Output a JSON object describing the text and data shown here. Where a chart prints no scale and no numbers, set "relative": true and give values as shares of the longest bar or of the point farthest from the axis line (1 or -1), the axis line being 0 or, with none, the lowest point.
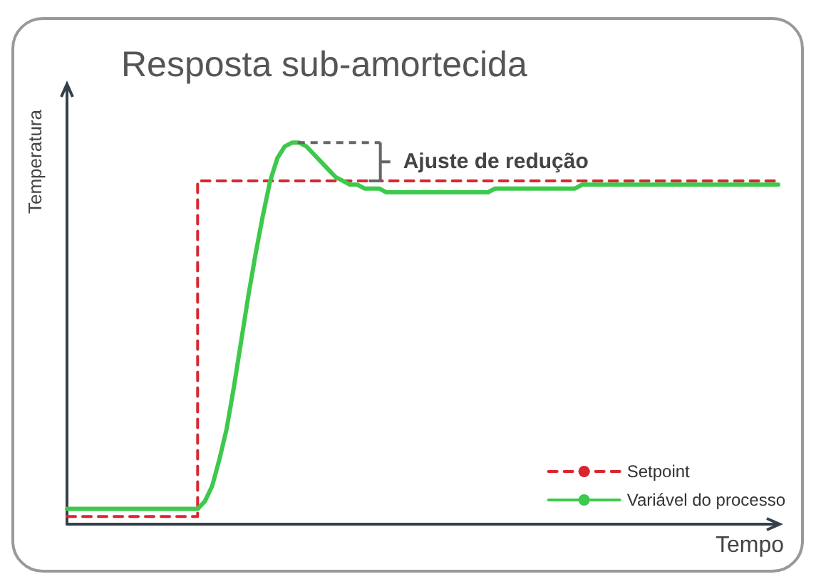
{
  "chart_data": {
    "type": "line",
    "title": "Resposta sub-amortecida",
    "xlabel": "Tempo",
    "ylabel": "Temperatura",
    "relative": true,
    "grid": false,
    "legend": "bottom right",
    "marker": "none",
    "annotations": [
      "Ajuste de redução"
    ],
    "categories": [
      null,
      null,
      null,
      null,
      null,
      null,
      null,
      null,
      null,
      null,
      null,
      null,
      null,
      null,
      null,
      null,
      null,
      null,
      null,
      null,
      null,
      null,
      null,
      null,
      null,
      null,
      null,
      null,
      null,
      null,
      null,
      null,
      null,
      null,
      null,
      null,
      null,
      null,
      null,
      null,
      null,
      null,
      null,
      null,
      null,
      null,
      null,
      null,
      null,
      null,
      null,
      null,
      null,
      null,
      null,
      null,
      null,
      null,
      null,
      null,
      null,
      null,
      null,
      null,
      null,
      null,
      null,
      null,
      null,
      null,
      null,
      null,
      null,
      null,
      null,
      null,
      null,
      null,
      null,
      null,
      null,
      null,
      null,
      null,
      null,
      null,
      null,
      null,
      null,
      null,
      null,
      null,
      null,
      null,
      null,
      null,
      null,
      null,
      null
    ],
    "series": [
      {
        "name": "Setpoint",
        "type": "step",
        "color": "#d9262e",
        "line_style": "dashed",
        "values": [
          0.02,
          0.02,
          0.02,
          0.02,
          0.02,
          0.02,
          0.02,
          0.02,
          0.02,
          0.02,
          0.02,
          0.02,
          0.02,
          0.02,
          0.02,
          0.02,
          0.02,
          0.02,
          0.9,
          0.9,
          0.9,
          0.9,
          0.9,
          0.9,
          0.9,
          0.9,
          0.9,
          0.9,
          0.9,
          0.9,
          0.9,
          0.9,
          0.9,
          0.9,
          0.9,
          0.9,
          0.9,
          0.9,
          0.9,
          0.9,
          0.9,
          0.9,
          0.9,
          0.9,
          0.9,
          0.9,
          0.9,
          0.9,
          0.9,
          0.9,
          0.9,
          0.9,
          0.9,
          0.9,
          0.9,
          0.9,
          0.9,
          0.9,
          0.9,
          0.9,
          0.9,
          0.9,
          0.9,
          0.9,
          0.9,
          0.9,
          0.9,
          0.9,
          0.9,
          0.9,
          0.9,
          0.9,
          0.9,
          0.9,
          0.9,
          0.9,
          0.9,
          0.9,
          0.9,
          0.9,
          0.9,
          0.9,
          0.9,
          0.9,
          0.9,
          0.9,
          0.9,
          0.9,
          0.9,
          0.9,
          0.9,
          0.9,
          0.9,
          0.9,
          0.9,
          0.9,
          0.9,
          0.9,
          0.9
        ]
      },
      {
        "name": "Variável do processo",
        "type": "line",
        "color": "#3dc94c",
        "line_style": "solid",
        "values": [
          0.04,
          0.04,
          0.04,
          0.04,
          0.04,
          0.04,
          0.04,
          0.04,
          0.04,
          0.04,
          0.04,
          0.04,
          0.04,
          0.04,
          0.04,
          0.04,
          0.04,
          0.04,
          0.04,
          0.06,
          0.1,
          0.17,
          0.25,
          0.36,
          0.48,
          0.6,
          0.71,
          0.81,
          0.9,
          0.96,
          0.99,
          1.0,
          1.0,
          0.99,
          0.97,
          0.95,
          0.93,
          0.91,
          0.9,
          0.89,
          0.89,
          0.88,
          0.88,
          0.88,
          0.87,
          0.87,
          0.87,
          0.87,
          0.87,
          0.87,
          0.87,
          0.87,
          0.87,
          0.87,
          0.87,
          0.87,
          0.87,
          0.87,
          0.87,
          0.88,
          0.88,
          0.88,
          0.88,
          0.88,
          0.88,
          0.88,
          0.88,
          0.88,
          0.88,
          0.88,
          0.88,
          0.89,
          0.89,
          0.89,
          0.89,
          0.89,
          0.89,
          0.89,
          0.89,
          0.89,
          0.89,
          0.89,
          0.89,
          0.89,
          0.89,
          0.89,
          0.89,
          0.89,
          0.89,
          0.89,
          0.89,
          0.89,
          0.89,
          0.89,
          0.89,
          0.89,
          0.89,
          0.89,
          0.89
        ]
      }
    ]
  }
}
